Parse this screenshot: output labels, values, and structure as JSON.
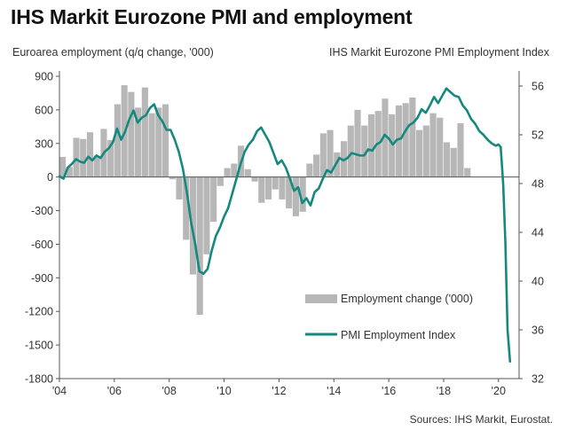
{
  "title": "IHS Markit Eurozone PMI and employment",
  "source": "Sources: IHS Markit, Eurostat.",
  "colors": {
    "bars": "#b7b7b7",
    "line": "#16897e",
    "axis": "#555555"
  },
  "chart_data": {
    "type": "bar+line",
    "x_ticks": [
      "'04",
      "'06",
      "'08",
      "'10",
      "'12",
      "'14",
      "'16",
      "'18",
      "'20"
    ],
    "x_range": [
      2004.0,
      2020.75
    ],
    "left_axis": {
      "label": "Euroarea employment  (q/q change, '000)",
      "ticks": [
        "900",
        "600",
        "300",
        "0",
        "-300",
        "-600",
        "-900",
        "-1200",
        "-1500",
        "-1800"
      ],
      "ylim": [
        -1800,
        900
      ]
    },
    "right_axis": {
      "label": "IHS Markit Eurozone PMI Employment Index",
      "ticks": [
        "56",
        "52",
        "48",
        "44",
        "40",
        "36",
        "32"
      ],
      "ylim": [
        32,
        56.8
      ]
    },
    "legend": {
      "position": "bottom-right",
      "bar_label": "Employment change ('000)",
      "line_label": "PMI Employment Index"
    },
    "bars": {
      "name": "Employment change ('000)",
      "start": 2004.0,
      "step": 0.25,
      "values": [
        180,
        90,
        350,
        340,
        400,
        190,
        430,
        330,
        650,
        820,
        760,
        620,
        800,
        570,
        620,
        650,
        -20,
        -200,
        -560,
        -870,
        -1230,
        -690,
        -400,
        -80,
        80,
        120,
        280,
        70,
        -40,
        -230,
        -200,
        -110,
        -200,
        -280,
        -350,
        -310,
        120,
        200,
        390,
        420,
        220,
        320,
        460,
        600,
        460,
        560,
        590,
        700,
        560,
        640,
        660,
        710,
        420,
        460,
        570,
        530,
        310,
        260,
        480,
        80
      ]
    },
    "line": {
      "name": "PMI Employment Index",
      "x": [
        2004.0,
        2004.15,
        2004.3,
        2004.45,
        2004.6,
        2004.75,
        2004.9,
        2005.05,
        2005.2,
        2005.35,
        2005.5,
        2005.65,
        2005.8,
        2005.95,
        2006.1,
        2006.25,
        2006.4,
        2006.55,
        2006.7,
        2006.85,
        2007.0,
        2007.15,
        2007.3,
        2007.45,
        2007.6,
        2007.75,
        2007.9,
        2008.05,
        2008.2,
        2008.35,
        2008.5,
        2008.65,
        2008.8,
        2008.95,
        2009.1,
        2009.25,
        2009.4,
        2009.55,
        2009.7,
        2009.85,
        2010.0,
        2010.15,
        2010.3,
        2010.45,
        2010.6,
        2010.75,
        2010.9,
        2011.05,
        2011.2,
        2011.35,
        2011.5,
        2011.65,
        2011.8,
        2011.95,
        2012.1,
        2012.25,
        2012.4,
        2012.55,
        2012.7,
        2012.85,
        2013.0,
        2013.15,
        2013.3,
        2013.45,
        2013.6,
        2013.75,
        2013.9,
        2014.05,
        2014.2,
        2014.35,
        2014.5,
        2014.65,
        2014.8,
        2014.95,
        2015.1,
        2015.25,
        2015.4,
        2015.55,
        2015.7,
        2015.85,
        2016.0,
        2016.15,
        2016.3,
        2016.45,
        2016.6,
        2016.75,
        2016.9,
        2017.05,
        2017.2,
        2017.35,
        2017.5,
        2017.65,
        2017.8,
        2017.95,
        2018.1,
        2018.25,
        2018.4,
        2018.55,
        2018.7,
        2018.85,
        2019.0,
        2019.15,
        2019.3,
        2019.45,
        2019.6,
        2019.75,
        2019.9,
        2020.0,
        2020.08,
        2020.17,
        2020.25,
        2020.33,
        2020.42
      ],
      "y": [
        48.6,
        48.4,
        49.3,
        49.6,
        50.0,
        49.8,
        49.7,
        50.2,
        49.9,
        50.3,
        50.1,
        50.6,
        50.9,
        51.4,
        52.5,
        51.6,
        52.3,
        53.3,
        54.0,
        53.0,
        53.4,
        53.6,
        54.2,
        54.5,
        53.6,
        53.1,
        52.4,
        52.4,
        51.6,
        50.6,
        49.2,
        47.2,
        44.8,
        43.0,
        40.8,
        40.6,
        41.0,
        42.5,
        43.7,
        44.4,
        45.3,
        46.0,
        47.2,
        48.4,
        49.6,
        50.6,
        51.2,
        51.6,
        52.3,
        52.6,
        52.0,
        51.4,
        50.5,
        49.6,
        49.9,
        49.3,
        48.4,
        47.4,
        47.7,
        46.4,
        46.8,
        46.2,
        47.3,
        47.6,
        48.4,
        49.1,
        48.9,
        49.5,
        50.1,
        49.9,
        50.1,
        50.5,
        50.4,
        50.3,
        50.3,
        50.8,
        50.7,
        51.2,
        51.4,
        52.0,
        51.7,
        51.2,
        51.6,
        51.7,
        52.3,
        52.8,
        53.0,
        53.4,
        54.1,
        53.8,
        54.4,
        55.1,
        54.6,
        55.2,
        55.8,
        55.5,
        55.2,
        55.1,
        54.4,
        54.0,
        53.3,
        52.9,
        52.3,
        52.0,
        51.6,
        51.3,
        51.1,
        51.2,
        51.0,
        48.0,
        43.2,
        36.0,
        33.4
      ]
    }
  }
}
